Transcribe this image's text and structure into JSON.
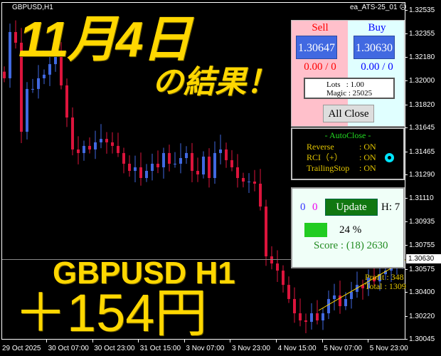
{
  "chart": {
    "symbol_label": "GBPUSD,H1",
    "ea_label": "ea_ATS-25_01",
    "ea_icon": "frown-face-icon",
    "current_price": "1.30630",
    "price_axis": [
      "1.32535",
      "1.32355",
      "1.32180",
      "1.32000",
      "1.31820",
      "1.31645",
      "1.31465",
      "1.31290",
      "1.31110",
      "1.30935",
      "1.30755",
      "1.30575",
      "1.30400",
      "1.30220",
      "1.30045"
    ],
    "time_axis": [
      "29 Oct 2025",
      "30 Oct 07:00",
      "30 Oct 23:00",
      "31 Oct 15:00",
      "3 Nov 07:00",
      "3 Nov 23:00",
      "4 Nov 15:00",
      "5 Nov 07:00",
      "5 Nov 23:00"
    ],
    "bull_color": "#4169e1",
    "bear_color": "#dc143c",
    "closes": [
      1.32018,
      1.32368,
      1.32287,
      1.31613,
      1.31937,
      1.31937,
      1.32018,
      1.32045,
      1.32125,
      1.32179,
      1.31964,
      1.31721,
      1.31479,
      1.31452,
      1.31506,
      1.31479,
      1.31533,
      1.31559,
      1.31533,
      1.31506,
      1.31452,
      1.31371,
      1.31317,
      1.31344,
      1.31263,
      1.31317,
      1.31371,
      1.31344,
      1.31452,
      1.31371,
      1.31371,
      1.31414,
      1.31452,
      1.31317,
      1.3129,
      1.31425,
      1.31263,
      1.31452,
      1.31479,
      1.31398,
      1.31344,
      1.31263,
      1.31236,
      1.31236,
      1.3122,
      1.31047,
      1.3067,
      1.30616,
      1.30562,
      1.30454,
      1.30347,
      1.30239,
      1.30185,
      1.30174,
      1.30239,
      1.30185,
      1.30239,
      1.30347,
      1.30374,
      1.30293,
      1.30347,
      1.30401,
      1.30454,
      1.30428,
      1.30508,
      1.30481,
      1.30535,
      1.30562,
      1.30589,
      1.30605,
      1.30627
    ]
  },
  "overlay": {
    "title_line1": "11月4日",
    "title_line2": "の結果！",
    "pair_line": "GBPUSD H1",
    "result_line": "＋154円",
    "text_color": "#ffd700"
  },
  "trade_panel": {
    "sell_label": "Sell",
    "buy_label": "Buy",
    "sell_price": "1.30647",
    "buy_price": "1.30630",
    "sell_pl": "0.00 / 0",
    "buy_pl": "0.00 / 0",
    "lots": "Lots   : 1.00",
    "magic": "Magic : 25025",
    "all_close": "All Close"
  },
  "auto_close": {
    "title": "- AutoClose -",
    "rows": [
      {
        "label": "Reverse",
        "value": ": ON"
      },
      {
        "label": "RCI（+）",
        "value": ": ON"
      },
      {
        "label": "TrailingStop",
        "value": ": ON"
      }
    ],
    "status_icon": "ring-indicator-icon"
  },
  "score_panel": {
    "count_blue": "0",
    "count_magenta": "0",
    "update_label": "Update",
    "h_label": "H: 7",
    "progress_percent": 24,
    "progress_label": "24 %",
    "score": "Score : (18) 2630"
  },
  "profit_info": {
    "profit": "Profit : 348",
    "total": "Total : 1309"
  }
}
